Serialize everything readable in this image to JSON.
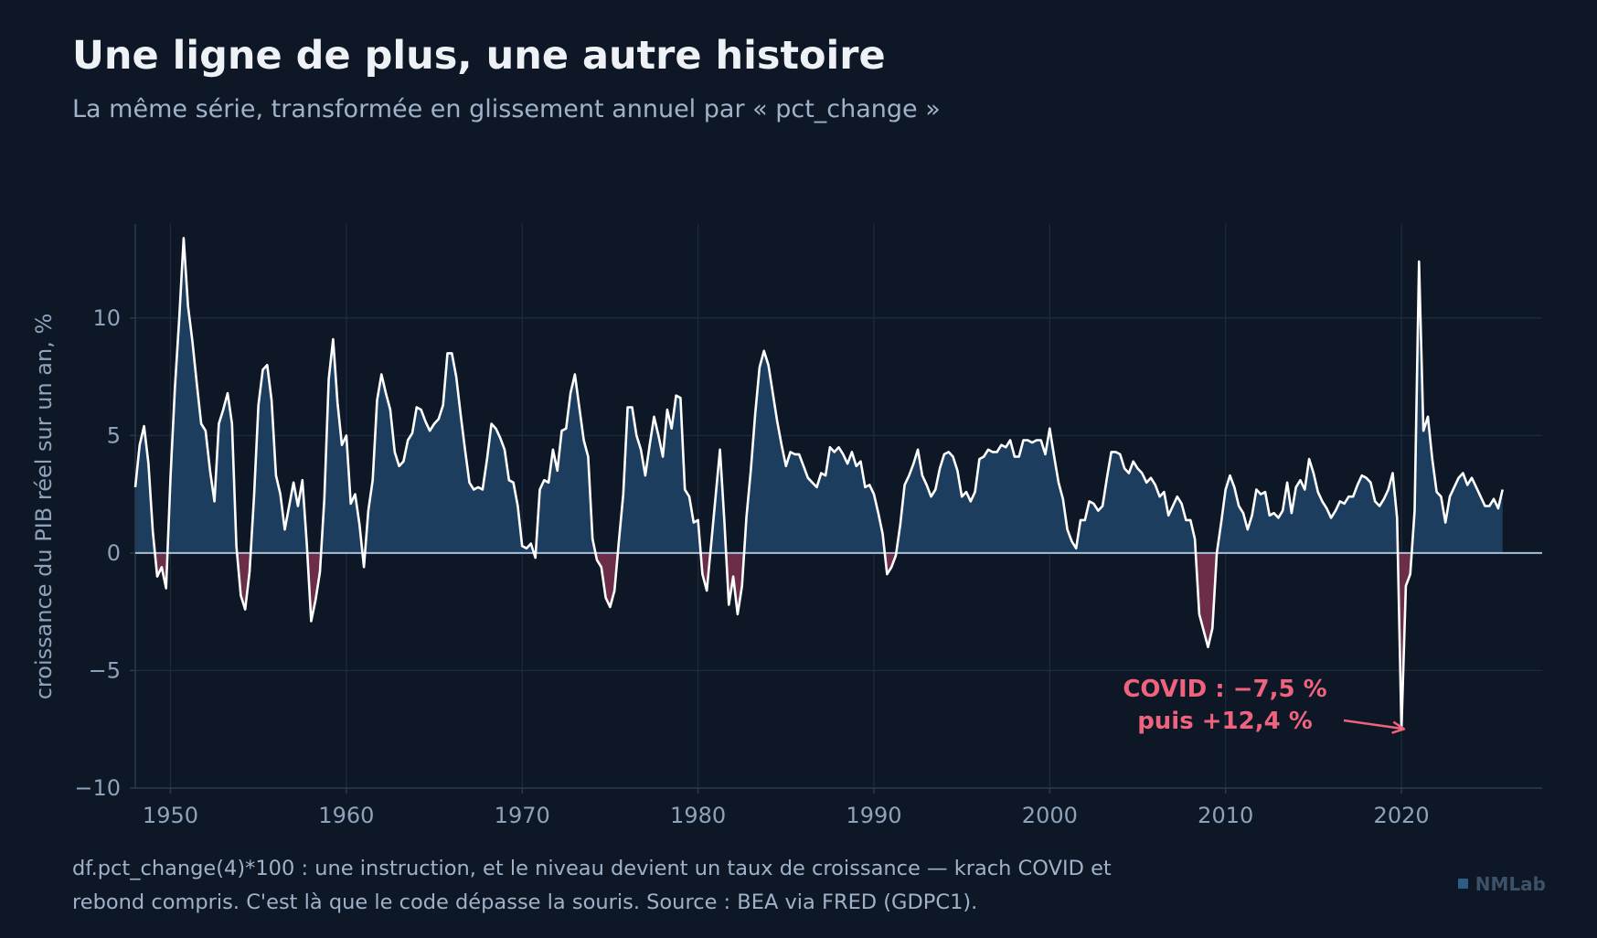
{
  "title": "Une ligne de plus, une autre histoire",
  "subtitle": "La même série, transformée en glissement annuel par « pct_change »",
  "caption_line1": "df.pct_change(4)*100 : une instruction, et le niveau devient un taux de croissance — krach COVID et",
  "caption_line2": "rebond compris. C'est là que le code dépasse la souris. Source : BEA via FRED (GDPC1).",
  "brand": "NMLab",
  "colors": {
    "background": "#0d1725",
    "line": "#ffffff",
    "positive_fill": "#1c3d5e",
    "negative_fill": "#6b2d48",
    "annotation": "#f0637f",
    "zero_line": "#a9bfd6",
    "grid": "#1d2b3d",
    "axis_text": "#8ea3bb"
  },
  "chart_data": {
    "type": "area",
    "xlabel": "",
    "ylabel": "croissance du PIB réel sur un an, %",
    "xlim": [
      1948,
      2028
    ],
    "ylim": [
      -10,
      14
    ],
    "x_ticks": [
      1950,
      1960,
      1970,
      1980,
      1990,
      2000,
      2010,
      2020
    ],
    "y_ticks": [
      10,
      5,
      0,
      -5,
      -10
    ],
    "y_tick_labels": [
      "10",
      "5",
      "0",
      "−5",
      "−10"
    ],
    "grid": true,
    "series": [
      {
        "x": [
          1948.0,
          1948.25,
          1948.5,
          1948.75,
          1949.0,
          1949.25,
          1949.5,
          1949.75,
          1950.0,
          1950.25,
          1950.5,
          1950.75,
          1951.0,
          1951.25,
          1951.5,
          1951.75,
          1952.0,
          1952.25,
          1952.5,
          1952.75,
          1953.0,
          1953.25,
          1953.5,
          1953.75,
          1954.0,
          1954.25,
          1954.5,
          1954.75,
          1955.0,
          1955.25,
          1955.5,
          1955.75,
          1956.0,
          1956.25,
          1956.5,
          1956.75,
          1957.0,
          1957.25,
          1957.5,
          1957.75,
          1958.0,
          1958.25,
          1958.5,
          1958.75,
          1959.0,
          1959.25,
          1959.5,
          1959.75,
          1960.0,
          1960.25,
          1960.5,
          1960.75,
          1961.0,
          1961.25,
          1961.5,
          1961.75,
          1962.0,
          1962.25,
          1962.5,
          1962.75,
          1963.0,
          1963.25,
          1963.5,
          1963.75,
          1964.0,
          1964.25,
          1964.5,
          1964.75,
          1965.0,
          1965.25,
          1965.5,
          1965.75,
          1966.0,
          1966.25,
          1966.5,
          1966.75,
          1967.0,
          1967.25,
          1967.5,
          1967.75,
          1968.0,
          1968.25,
          1968.5,
          1968.75,
          1969.0,
          1969.25,
          1969.5,
          1969.75,
          1970.0,
          1970.25,
          1970.5,
          1970.75,
          1971.0,
          1971.25,
          1971.5,
          1971.75,
          1972.0,
          1972.25,
          1972.5,
          1972.75,
          1973.0,
          1973.25,
          1973.5,
          1973.75,
          1974.0,
          1974.25,
          1974.5,
          1974.75,
          1975.0,
          1975.25,
          1975.5,
          1975.75,
          1976.0,
          1976.25,
          1976.5,
          1976.75,
          1977.0,
          1977.25,
          1977.5,
          1977.75,
          1978.0,
          1978.25,
          1978.5,
          1978.75,
          1979.0,
          1979.25,
          1979.5,
          1979.75,
          1980.0,
          1980.25,
          1980.5,
          1980.75,
          1981.0,
          1981.25,
          1981.5,
          1981.75,
          1982.0,
          1982.25,
          1982.5,
          1982.75,
          1983.0,
          1983.25,
          1983.5,
          1983.75,
          1984.0,
          1984.25,
          1984.5,
          1984.75,
          1985.0,
          1985.25,
          1985.5,
          1985.75,
          1986.0,
          1986.25,
          1986.5,
          1986.75,
          1987.0,
          1987.25,
          1987.5,
          1987.75,
          1988.0,
          1988.25,
          1988.5,
          1988.75,
          1989.0,
          1989.25,
          1989.5,
          1989.75,
          1990.0,
          1990.25,
          1990.5,
          1990.75,
          1991.0,
          1991.25,
          1991.5,
          1991.75,
          1992.0,
          1992.25,
          1992.5,
          1992.75,
          1993.0,
          1993.25,
          1993.5,
          1993.75,
          1994.0,
          1994.25,
          1994.5,
          1994.75,
          1995.0,
          1995.25,
          1995.5,
          1995.75,
          1996.0,
          1996.25,
          1996.5,
          1996.75,
          1997.0,
          1997.25,
          1997.5,
          1997.75,
          1998.0,
          1998.25,
          1998.5,
          1998.75,
          1999.0,
          1999.25,
          1999.5,
          1999.75,
          2000.0,
          2000.25,
          2000.5,
          2000.75,
          2001.0,
          2001.25,
          2001.5,
          2001.75,
          2002.0,
          2002.25,
          2002.5,
          2002.75,
          2003.0,
          2003.25,
          2003.5,
          2003.75,
          2004.0,
          2004.25,
          2004.5,
          2004.75,
          2005.0,
          2005.25,
          2005.5,
          2005.75,
          2006.0,
          2006.25,
          2006.5,
          2006.75,
          2007.0,
          2007.25,
          2007.5,
          2007.75,
          2008.0,
          2008.25,
          2008.5,
          2008.75,
          2009.0,
          2009.25,
          2009.5,
          2009.75,
          2010.0,
          2010.25,
          2010.5,
          2010.75,
          2011.0,
          2011.25,
          2011.5,
          2011.75,
          2012.0,
          2012.25,
          2012.5,
          2012.75,
          2013.0,
          2013.25,
          2013.5,
          2013.75,
          2014.0,
          2014.25,
          2014.5,
          2014.75,
          2015.0,
          2015.25,
          2015.5,
          2015.75,
          2016.0,
          2016.25,
          2016.5,
          2016.75,
          2017.0,
          2017.25,
          2017.5,
          2017.75,
          2018.0,
          2018.25,
          2018.5,
          2018.75,
          2019.0,
          2019.25,
          2019.5,
          2019.75,
          2020.0,
          2020.25,
          2020.5,
          2020.75,
          2021.0,
          2021.25,
          2021.5,
          2021.75,
          2022.0,
          2022.25,
          2022.5,
          2022.75,
          2023.0,
          2023.25,
          2023.5,
          2023.75,
          2024.0,
          2024.25,
          2024.5,
          2024.75,
          2025.0,
          2025.25,
          2025.5,
          2025.75
        ],
        "y": [
          2.8,
          4.6,
          5.4,
          3.8,
          0.9,
          -1.0,
          -0.6,
          -1.5,
          3.2,
          7.0,
          10.0,
          13.4,
          10.5,
          9.0,
          7.2,
          5.5,
          5.2,
          3.5,
          2.2,
          5.5,
          6.1,
          6.8,
          5.5,
          0.3,
          -1.8,
          -2.4,
          -0.8,
          2.4,
          6.3,
          7.8,
          8.0,
          6.5,
          3.3,
          2.5,
          1.0,
          2.0,
          3.0,
          2.0,
          3.1,
          0.4,
          -2.9,
          -2.0,
          -0.8,
          2.3,
          7.4,
          9.1,
          6.4,
          4.6,
          5.0,
          2.1,
          2.5,
          1.2,
          -0.6,
          1.8,
          3.1,
          6.5,
          7.6,
          6.8,
          6.1,
          4.3,
          3.7,
          3.9,
          4.8,
          5.1,
          6.2,
          6.1,
          5.6,
          5.2,
          5.5,
          5.7,
          6.3,
          8.5,
          8.5,
          7.5,
          5.9,
          4.4,
          3.0,
          2.7,
          2.8,
          2.7,
          4.0,
          5.5,
          5.3,
          4.9,
          4.4,
          3.1,
          3.0,
          2.0,
          0.3,
          0.2,
          0.4,
          -0.2,
          2.7,
          3.1,
          3.0,
          4.4,
          3.5,
          5.2,
          5.3,
          6.8,
          7.6,
          6.2,
          4.8,
          4.1,
          0.6,
          -0.3,
          -0.6,
          -1.9,
          -2.3,
          -1.6,
          0.5,
          2.5,
          6.2,
          6.2,
          5.0,
          4.4,
          3.3,
          4.6,
          5.8,
          5.0,
          4.1,
          6.1,
          5.3,
          6.7,
          6.6,
          2.7,
          2.4,
          1.3,
          1.4,
          -0.9,
          -1.6,
          0.4,
          2.4,
          4.4,
          1.3,
          -2.2,
          -1.0,
          -2.6,
          -1.4,
          1.5,
          3.5,
          5.9,
          7.9,
          8.6,
          8.0,
          6.8,
          5.6,
          4.6,
          3.7,
          4.3,
          4.2,
          4.2,
          3.7,
          3.2,
          3.0,
          2.8,
          3.4,
          3.3,
          4.5,
          4.3,
          4.5,
          4.2,
          3.8,
          4.3,
          3.7,
          3.9,
          2.8,
          2.9,
          2.5,
          1.7,
          0.8,
          -0.9,
          -0.6,
          -0.1,
          1.2,
          2.9,
          3.3,
          3.8,
          4.4,
          3.3,
          2.9,
          2.4,
          2.7,
          3.6,
          4.2,
          4.3,
          4.1,
          3.5,
          2.4,
          2.6,
          2.2,
          2.6,
          4.0,
          4.1,
          4.4,
          4.3,
          4.3,
          4.6,
          4.5,
          4.8,
          4.1,
          4.1,
          4.8,
          4.8,
          4.7,
          4.8,
          4.8,
          4.2,
          5.3,
          4.1,
          3.0,
          2.3,
          1.0,
          0.5,
          0.2,
          1.4,
          1.4,
          2.2,
          2.1,
          1.8,
          2.0,
          3.2,
          4.3,
          4.3,
          4.2,
          3.6,
          3.4,
          3.9,
          3.6,
          3.4,
          3.0,
          3.2,
          2.9,
          2.4,
          2.6,
          1.6,
          2.0,
          2.4,
          2.1,
          1.4,
          1.4,
          0.6,
          -2.6,
          -3.3,
          -4.0,
          -3.2,
          0.0,
          1.3,
          2.7,
          3.3,
          2.8,
          2.0,
          1.7,
          1.0,
          1.6,
          2.7,
          2.5,
          2.6,
          1.6,
          1.7,
          1.5,
          1.8,
          3.0,
          1.7,
          2.8,
          3.1,
          2.7,
          4.0,
          3.4,
          2.6,
          2.2,
          1.9,
          1.5,
          1.8,
          2.2,
          2.1,
          2.4,
          2.4,
          2.9,
          3.3,
          3.2,
          3.0,
          2.2,
          2.0,
          2.3,
          2.7,
          3.4,
          1.5,
          -7.5,
          -1.4,
          -0.9,
          1.8,
          12.4,
          5.2,
          5.8,
          4.0,
          2.6,
          2.4,
          1.3,
          2.4,
          2.8,
          3.2,
          3.4,
          2.9,
          3.2,
          2.8,
          2.4,
          2.0,
          2.0,
          2.3,
          1.9,
          2.7
        ]
      }
    ],
    "annotations": [
      {
        "line1": "COVID : −7,5 %",
        "line2": "puis +12,4 %",
        "x": 2020.25,
        "y": -7.5
      }
    ]
  }
}
